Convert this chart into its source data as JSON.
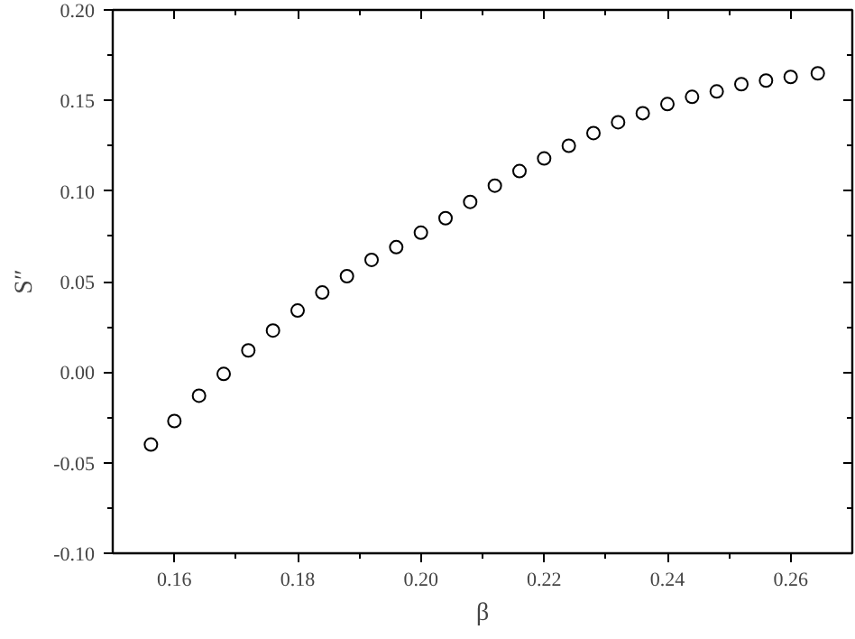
{
  "chart_data": {
    "type": "scatter",
    "xlabel": "β",
    "ylabel": "S″",
    "xlim": [
      0.15,
      0.27
    ],
    "ylim": [
      -0.1,
      0.2
    ],
    "xticks": [
      {
        "value": 0.16,
        "label": "0.16"
      },
      {
        "value": 0.17,
        "label": null
      },
      {
        "value": 0.18,
        "label": "0.18"
      },
      {
        "value": 0.19,
        "label": null
      },
      {
        "value": 0.2,
        "label": "0.20"
      },
      {
        "value": 0.21,
        "label": null
      },
      {
        "value": 0.22,
        "label": "0.22"
      },
      {
        "value": 0.23,
        "label": null
      },
      {
        "value": 0.24,
        "label": "0.24"
      },
      {
        "value": 0.25,
        "label": null
      },
      {
        "value": 0.26,
        "label": "0.26"
      }
    ],
    "yticks": [
      {
        "value": -0.1,
        "label": "-0.10"
      },
      {
        "value": -0.075,
        "label": null
      },
      {
        "value": -0.05,
        "label": "-0.05"
      },
      {
        "value": -0.025,
        "label": null
      },
      {
        "value": 0.0,
        "label": "0.00"
      },
      {
        "value": 0.025,
        "label": null
      },
      {
        "value": 0.05,
        "label": "0.05"
      },
      {
        "value": 0.075,
        "label": null
      },
      {
        "value": 0.1,
        "label": "0.10"
      },
      {
        "value": 0.125,
        "label": null
      },
      {
        "value": 0.15,
        "label": "0.15"
      },
      {
        "value": 0.175,
        "label": null
      },
      {
        "value": 0.2,
        "label": "0.20"
      }
    ],
    "marker": "circle",
    "grid": false,
    "series": [
      {
        "color": "#000000",
        "x": [
          0.1562,
          0.16,
          0.164,
          0.168,
          0.172,
          0.176,
          0.18,
          0.184,
          0.188,
          0.192,
          0.196,
          0.2,
          0.204,
          0.208,
          0.212,
          0.216,
          0.22,
          0.224,
          0.228,
          0.232,
          0.236,
          0.24,
          0.244,
          0.248,
          0.252,
          0.256,
          0.26,
          0.2644
        ],
        "values": [
          -0.04,
          -0.027,
          -0.013,
          -0.001,
          0.012,
          0.023,
          0.034,
          0.044,
          0.053,
          0.062,
          0.069,
          0.077,
          0.085,
          0.094,
          0.103,
          0.111,
          0.118,
          0.125,
          0.132,
          0.138,
          0.143,
          0.148,
          0.152,
          0.155,
          0.159,
          0.161,
          0.163,
          0.165
        ]
      }
    ]
  }
}
